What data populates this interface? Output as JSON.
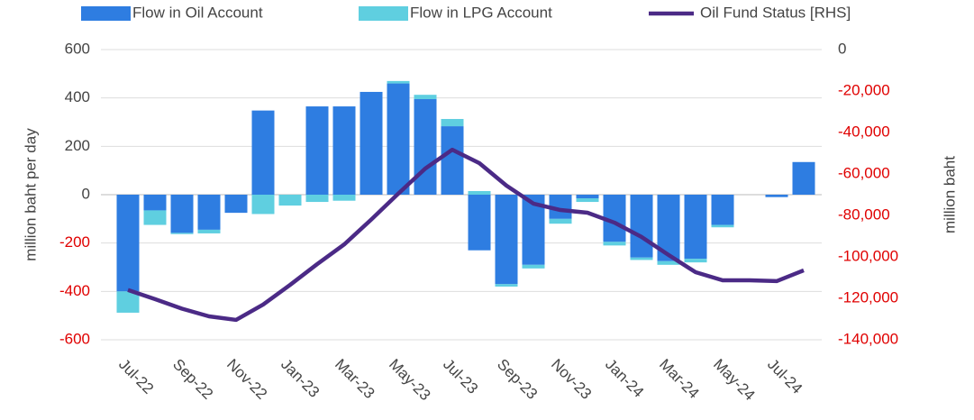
{
  "chart_data": {
    "type": "bar",
    "categories": [
      "Jul-22",
      null,
      "Sep-22",
      null,
      "Nov-22",
      null,
      "Jan-23",
      null,
      "Mar-23",
      null,
      "May-23",
      null,
      "Jul-23",
      null,
      "Sep-23",
      null,
      "Nov-23",
      null,
      "Jan-24",
      null,
      "Mar-24",
      null,
      "May-24",
      null,
      "Jul-24",
      null
    ],
    "series": [
      {
        "name": "Flow in Oil Account",
        "color": "#2e7de1",
        "type": "bar",
        "values": [
          -400,
          -65,
          -158,
          -145,
          -75,
          348,
          0,
          365,
          365,
          425,
          460,
          395,
          283,
          -230,
          -370,
          -290,
          -100,
          -15,
          -195,
          -260,
          -275,
          -265,
          -125,
          0,
          -10,
          135
        ]
      },
      {
        "name": "Flow in LPG Account",
        "color": "#5fcfe0",
        "type": "bar",
        "values": [
          -88,
          -60,
          -5,
          -15,
          0,
          -80,
          -45,
          -30,
          -25,
          0,
          10,
          18,
          30,
          15,
          -10,
          -15,
          -20,
          -15,
          -15,
          -10,
          -15,
          -15,
          -10,
          0,
          0,
          0
        ]
      },
      {
        "name": "Oil Fund Status [RHS]",
        "color": "#4b2a86",
        "type": "line",
        "axis": "y2",
        "values": [
          -116000,
          -120400,
          -125000,
          -128700,
          -130400,
          -123000,
          -113500,
          -103500,
          -94000,
          -82000,
          -69500,
          -57400,
          -48300,
          -54800,
          -65600,
          -74300,
          -77400,
          -78700,
          -83500,
          -90400,
          -99100,
          -107400,
          -111300,
          -111300,
          -111700,
          -106500
        ]
      }
    ],
    "ylabel": "million baht per day",
    "y2label": "million baht",
    "ylim": [
      -600,
      600
    ],
    "yticks": [
      -600,
      -400,
      -200,
      0,
      200,
      400,
      600
    ],
    "y2lim": [
      -140000,
      0
    ],
    "y2ticks": [
      {
        "value": -140000,
        "label": "-140,000"
      },
      {
        "value": -120000,
        "label": "-120,000"
      },
      {
        "value": -100000,
        "label": "-100,000"
      },
      {
        "value": -80000,
        "label": "-80,000"
      },
      {
        "value": -60000,
        "label": "-60,000"
      },
      {
        "value": -40000,
        "label": "-40,000"
      },
      {
        "value": -20000,
        "label": "-20,000"
      },
      0
    ],
    "negative_tick_color": "#e00000",
    "grid": true,
    "legend": "top"
  }
}
